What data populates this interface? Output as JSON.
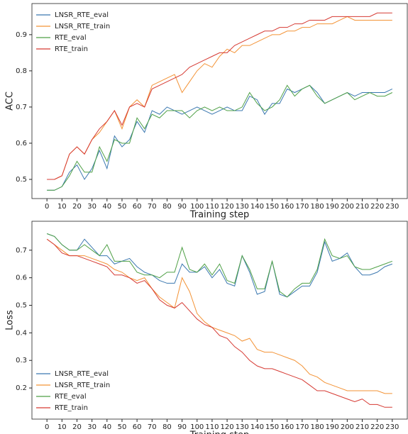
{
  "chart_data": [
    {
      "type": "line",
      "xlabel": "Training step",
      "ylabel": "ACC",
      "legend": "upper left",
      "x": [
        0,
        5,
        10,
        15,
        20,
        25,
        30,
        35,
        40,
        45,
        50,
        55,
        60,
        65,
        70,
        75,
        80,
        85,
        90,
        95,
        100,
        105,
        110,
        115,
        120,
        125,
        130,
        135,
        140,
        145,
        150,
        155,
        160,
        165,
        170,
        175,
        180,
        185,
        190,
        195,
        200,
        205,
        210,
        215,
        220,
        225,
        230
      ],
      "xlim": [
        -10,
        240
      ],
      "xticks": [
        0,
        10,
        20,
        30,
        40,
        50,
        60,
        70,
        80,
        90,
        100,
        110,
        120,
        130,
        140,
        150,
        160,
        170,
        180,
        190,
        200,
        210,
        220,
        230
      ],
      "ylim": [
        0.447,
        0.986
      ],
      "yticks": [
        0.5,
        0.6,
        0.7,
        0.8,
        0.9
      ],
      "series": [
        {
          "name": "LNSR_RTE_eval",
          "color": "#3b78b0",
          "values": [
            0.47,
            0.47,
            0.48,
            0.52,
            0.54,
            0.5,
            0.53,
            0.58,
            0.53,
            0.62,
            0.59,
            0.61,
            0.66,
            0.63,
            0.69,
            0.68,
            0.7,
            0.69,
            0.68,
            0.69,
            0.7,
            0.69,
            0.68,
            0.69,
            0.7,
            0.69,
            0.69,
            0.73,
            0.72,
            0.68,
            0.71,
            0.71,
            0.75,
            0.74,
            0.75,
            0.76,
            0.74,
            0.71,
            0.72,
            0.73,
            0.74,
            0.73,
            0.74,
            0.74,
            0.74,
            0.74,
            0.75
          ]
        },
        {
          "name": "LNSR_RTE_train",
          "color": "#f39336",
          "values": [
            0.5,
            0.5,
            0.51,
            0.57,
            0.59,
            0.57,
            0.61,
            0.63,
            0.66,
            0.69,
            0.64,
            0.7,
            0.72,
            0.7,
            0.76,
            0.77,
            0.78,
            0.79,
            0.74,
            0.77,
            0.8,
            0.82,
            0.81,
            0.84,
            0.86,
            0.85,
            0.87,
            0.87,
            0.88,
            0.89,
            0.9,
            0.9,
            0.91,
            0.91,
            0.92,
            0.92,
            0.93,
            0.93,
            0.93,
            0.94,
            0.95,
            0.94,
            0.94,
            0.94,
            0.94,
            0.94,
            0.94
          ]
        },
        {
          "name": "RTE_eval",
          "color": "#4fa046",
          "values": [
            0.47,
            0.47,
            0.48,
            0.51,
            0.55,
            0.52,
            0.52,
            0.59,
            0.55,
            0.61,
            0.6,
            0.6,
            0.67,
            0.64,
            0.68,
            0.67,
            0.69,
            0.69,
            0.69,
            0.67,
            0.69,
            0.7,
            0.69,
            0.7,
            0.69,
            0.69,
            0.7,
            0.74,
            0.71,
            0.69,
            0.7,
            0.72,
            0.76,
            0.73,
            0.75,
            0.76,
            0.73,
            0.71,
            0.72,
            0.73,
            0.74,
            0.72,
            0.73,
            0.74,
            0.73,
            0.73,
            0.74
          ]
        },
        {
          "name": "RTE_train",
          "color": "#d63a33",
          "values": [
            0.5,
            0.5,
            0.51,
            0.57,
            0.59,
            0.57,
            0.61,
            0.64,
            0.66,
            0.69,
            0.65,
            0.7,
            0.71,
            0.7,
            0.75,
            0.76,
            0.77,
            0.78,
            0.79,
            0.81,
            0.82,
            0.83,
            0.84,
            0.85,
            0.85,
            0.87,
            0.88,
            0.89,
            0.9,
            0.91,
            0.91,
            0.92,
            0.92,
            0.93,
            0.93,
            0.94,
            0.94,
            0.94,
            0.95,
            0.95,
            0.95,
            0.95,
            0.95,
            0.95,
            0.96,
            0.96,
            0.96
          ]
        }
      ]
    },
    {
      "type": "line",
      "xlabel": "Training step",
      "ylabel": "Loss",
      "legend": "lower left",
      "x": [
        0,
        5,
        10,
        15,
        20,
        25,
        30,
        35,
        40,
        45,
        50,
        55,
        60,
        65,
        70,
        75,
        80,
        85,
        90,
        95,
        100,
        105,
        110,
        115,
        120,
        125,
        130,
        135,
        140,
        145,
        150,
        155,
        160,
        165,
        170,
        175,
        180,
        185,
        190,
        195,
        200,
        205,
        210,
        215,
        220,
        225,
        230
      ],
      "xlim": [
        -10,
        240
      ],
      "xticks": [
        0,
        10,
        20,
        30,
        40,
        50,
        60,
        70,
        80,
        90,
        100,
        110,
        120,
        130,
        140,
        150,
        160,
        170,
        180,
        190,
        200,
        210,
        220,
        230
      ],
      "ylim": [
        0.087,
        0.805
      ],
      "yticks": [
        0.2,
        0.3,
        0.4,
        0.5,
        0.6,
        0.7
      ],
      "series": [
        {
          "name": "LNSR_RTE_eval",
          "color": "#3b78b0",
          "values": [
            0.76,
            0.75,
            0.72,
            0.7,
            0.7,
            0.74,
            0.71,
            0.68,
            0.68,
            0.65,
            0.66,
            0.67,
            0.64,
            0.62,
            0.61,
            0.59,
            0.58,
            0.58,
            0.65,
            0.62,
            0.62,
            0.64,
            0.6,
            0.63,
            0.58,
            0.57,
            0.68,
            0.62,
            0.54,
            0.55,
            0.66,
            0.54,
            0.53,
            0.55,
            0.57,
            0.57,
            0.62,
            0.73,
            0.66,
            0.67,
            0.69,
            0.64,
            0.61,
            0.61,
            0.62,
            0.64,
            0.65
          ]
        },
        {
          "name": "LNSR_RTE_train",
          "color": "#f39336",
          "values": [
            0.74,
            0.72,
            0.7,
            0.68,
            0.68,
            0.68,
            0.67,
            0.66,
            0.65,
            0.63,
            0.62,
            0.6,
            0.59,
            0.6,
            0.56,
            0.53,
            0.51,
            0.49,
            0.6,
            0.55,
            0.47,
            0.44,
            0.42,
            0.41,
            0.4,
            0.39,
            0.37,
            0.38,
            0.34,
            0.33,
            0.33,
            0.32,
            0.31,
            0.3,
            0.28,
            0.25,
            0.24,
            0.22,
            0.21,
            0.2,
            0.19,
            0.19,
            0.19,
            0.19,
            0.19,
            0.18,
            0.18
          ]
        },
        {
          "name": "RTE_eval",
          "color": "#4fa046",
          "values": [
            0.76,
            0.75,
            0.72,
            0.7,
            0.7,
            0.72,
            0.7,
            0.68,
            0.72,
            0.66,
            0.66,
            0.66,
            0.62,
            0.61,
            0.61,
            0.6,
            0.62,
            0.62,
            0.71,
            0.63,
            0.62,
            0.65,
            0.61,
            0.65,
            0.59,
            0.58,
            0.68,
            0.63,
            0.56,
            0.56,
            0.66,
            0.55,
            0.53,
            0.56,
            0.58,
            0.58,
            0.63,
            0.74,
            0.68,
            0.67,
            0.68,
            0.64,
            0.63,
            0.63,
            0.64,
            0.65,
            0.66
          ]
        },
        {
          "name": "RTE_train",
          "color": "#d63a33",
          "values": [
            0.74,
            0.72,
            0.69,
            0.68,
            0.68,
            0.67,
            0.66,
            0.65,
            0.64,
            0.61,
            0.61,
            0.6,
            0.58,
            0.59,
            0.56,
            0.52,
            0.5,
            0.49,
            0.51,
            0.48,
            0.45,
            0.43,
            0.42,
            0.39,
            0.38,
            0.35,
            0.33,
            0.3,
            0.28,
            0.27,
            0.27,
            0.26,
            0.25,
            0.24,
            0.23,
            0.21,
            0.19,
            0.19,
            0.18,
            0.17,
            0.16,
            0.15,
            0.16,
            0.14,
            0.14,
            0.13,
            0.13
          ]
        }
      ]
    }
  ]
}
